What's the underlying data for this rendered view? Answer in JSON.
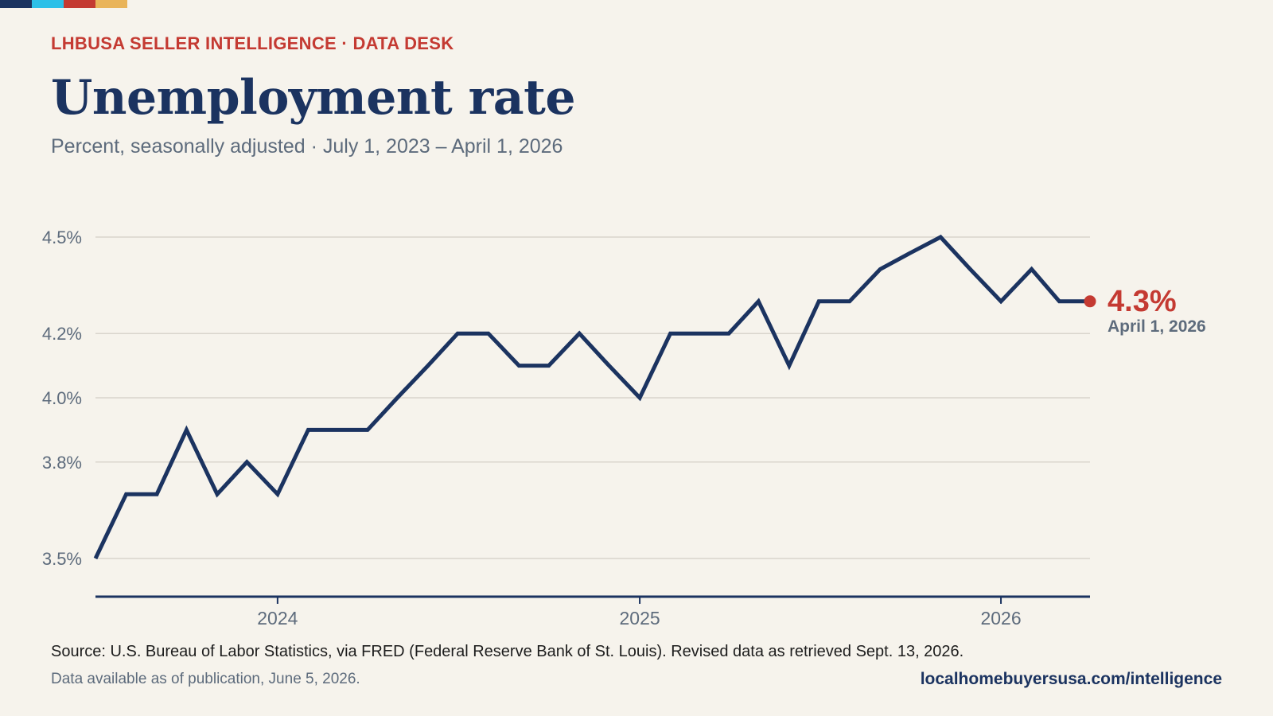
{
  "brand": {
    "stripe_colors": [
      "#1b3360",
      "#2cc0e8",
      "#c43a32",
      "#e9b45a"
    ]
  },
  "header": {
    "kicker": "LHBUSA SELLER INTELLIGENCE · DATA DESK",
    "title": "Unemployment rate",
    "subtitle": "Percent, seasonally adjusted · July 1, 2023 – April 1, 2026"
  },
  "chart_data": {
    "type": "line",
    "title": "Unemployment rate",
    "subtitle": "Percent, seasonally adjusted · July 1, 2023 – April 1, 2026",
    "x": [
      "2023-07-01",
      "2023-08-01",
      "2023-09-01",
      "2023-10-01",
      "2023-11-01",
      "2023-12-01",
      "2024-01-01",
      "2024-02-01",
      "2024-03-01",
      "2024-04-01",
      "2024-05-01",
      "2024-06-01",
      "2024-07-01",
      "2024-08-01",
      "2024-09-01",
      "2024-10-01",
      "2024-11-01",
      "2024-12-01",
      "2025-01-01",
      "2025-02-01",
      "2025-03-01",
      "2025-04-01",
      "2025-05-01",
      "2025-06-01",
      "2025-07-01",
      "2025-08-01",
      "2025-09-01",
      "2025-10-01",
      "2025-11-01",
      "2025-12-01",
      "2026-01-01",
      "2026-02-01",
      "2026-03-01",
      "2026-04-01"
    ],
    "series": [
      {
        "values": [
          3.5,
          3.7,
          3.7,
          3.9,
          3.7,
          3.8,
          3.7,
          3.9,
          3.9,
          3.9,
          4.0,
          4.1,
          4.2,
          4.2,
          4.1,
          4.1,
          4.2,
          4.1,
          4.0,
          4.2,
          4.2,
          4.2,
          4.3,
          4.1,
          4.3,
          4.3,
          4.4,
          4.45,
          4.5,
          4.4,
          4.3,
          4.4,
          4.3,
          4.3
        ]
      }
    ],
    "y_ticks": [
      3.5,
      3.8,
      4.0,
      4.2,
      4.5
    ],
    "y_tick_labels": [
      "3.5%",
      "3.8%",
      "4.0%",
      "4.2%",
      "4.5%"
    ],
    "x_ticks": [
      "2024-01-01",
      "2025-01-01",
      "2026-01-01"
    ],
    "x_tick_labels": [
      "2024",
      "2025",
      "2026"
    ],
    "ylim": [
      3.5,
      4.5
    ],
    "grid": true,
    "colors": {
      "line": "#1b3360",
      "highlight": "#c43a32",
      "grid": "#d9d5cc",
      "axis": "#1b3360",
      "tick_text": "#5d6b7c"
    },
    "endpoint": {
      "value_label": "4.3%",
      "date_label": "April 1, 2026"
    }
  },
  "footer": {
    "source": "Source: U.S. Bureau of Labor Statistics, via FRED (Federal Reserve Bank of St. Louis). Revised data as retrieved Sept. 13, 2026.",
    "availability": "Data available as of publication, June 5, 2026.",
    "site": "localhomebuyersusa.com/intelligence"
  }
}
